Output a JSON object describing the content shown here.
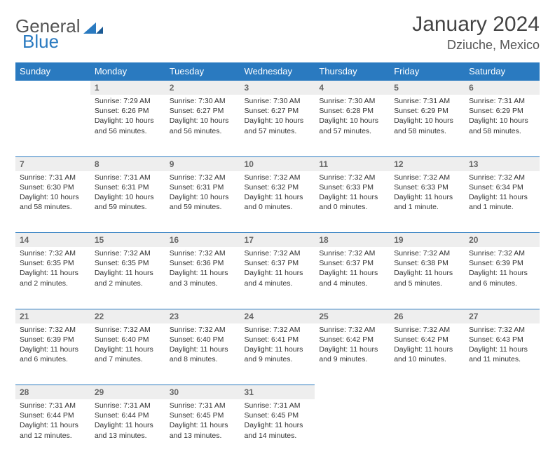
{
  "logo": {
    "word1": "General",
    "word2": "Blue"
  },
  "title": "January 2024",
  "location": "Dziuche, Mexico",
  "colors": {
    "header_bg": "#2a7ac0",
    "header_text": "#ffffff",
    "daynum_bg": "#eeeeee",
    "daynum_border": "#2a7ac0",
    "body_text": "#333333"
  },
  "weekdays": [
    "Sunday",
    "Monday",
    "Tuesday",
    "Wednesday",
    "Thursday",
    "Friday",
    "Saturday"
  ],
  "weeks": [
    [
      null,
      {
        "n": "1",
        "sr": "Sunrise: 7:29 AM",
        "ss": "Sunset: 6:26 PM",
        "dl": "Daylight: 10 hours and 56 minutes."
      },
      {
        "n": "2",
        "sr": "Sunrise: 7:30 AM",
        "ss": "Sunset: 6:27 PM",
        "dl": "Daylight: 10 hours and 56 minutes."
      },
      {
        "n": "3",
        "sr": "Sunrise: 7:30 AM",
        "ss": "Sunset: 6:27 PM",
        "dl": "Daylight: 10 hours and 57 minutes."
      },
      {
        "n": "4",
        "sr": "Sunrise: 7:30 AM",
        "ss": "Sunset: 6:28 PM",
        "dl": "Daylight: 10 hours and 57 minutes."
      },
      {
        "n": "5",
        "sr": "Sunrise: 7:31 AM",
        "ss": "Sunset: 6:29 PM",
        "dl": "Daylight: 10 hours and 58 minutes."
      },
      {
        "n": "6",
        "sr": "Sunrise: 7:31 AM",
        "ss": "Sunset: 6:29 PM",
        "dl": "Daylight: 10 hours and 58 minutes."
      }
    ],
    [
      {
        "n": "7",
        "sr": "Sunrise: 7:31 AM",
        "ss": "Sunset: 6:30 PM",
        "dl": "Daylight: 10 hours and 58 minutes."
      },
      {
        "n": "8",
        "sr": "Sunrise: 7:31 AM",
        "ss": "Sunset: 6:31 PM",
        "dl": "Daylight: 10 hours and 59 minutes."
      },
      {
        "n": "9",
        "sr": "Sunrise: 7:32 AM",
        "ss": "Sunset: 6:31 PM",
        "dl": "Daylight: 10 hours and 59 minutes."
      },
      {
        "n": "10",
        "sr": "Sunrise: 7:32 AM",
        "ss": "Sunset: 6:32 PM",
        "dl": "Daylight: 11 hours and 0 minutes."
      },
      {
        "n": "11",
        "sr": "Sunrise: 7:32 AM",
        "ss": "Sunset: 6:33 PM",
        "dl": "Daylight: 11 hours and 0 minutes."
      },
      {
        "n": "12",
        "sr": "Sunrise: 7:32 AM",
        "ss": "Sunset: 6:33 PM",
        "dl": "Daylight: 11 hours and 1 minute."
      },
      {
        "n": "13",
        "sr": "Sunrise: 7:32 AM",
        "ss": "Sunset: 6:34 PM",
        "dl": "Daylight: 11 hours and 1 minute."
      }
    ],
    [
      {
        "n": "14",
        "sr": "Sunrise: 7:32 AM",
        "ss": "Sunset: 6:35 PM",
        "dl": "Daylight: 11 hours and 2 minutes."
      },
      {
        "n": "15",
        "sr": "Sunrise: 7:32 AM",
        "ss": "Sunset: 6:35 PM",
        "dl": "Daylight: 11 hours and 2 minutes."
      },
      {
        "n": "16",
        "sr": "Sunrise: 7:32 AM",
        "ss": "Sunset: 6:36 PM",
        "dl": "Daylight: 11 hours and 3 minutes."
      },
      {
        "n": "17",
        "sr": "Sunrise: 7:32 AM",
        "ss": "Sunset: 6:37 PM",
        "dl": "Daylight: 11 hours and 4 minutes."
      },
      {
        "n": "18",
        "sr": "Sunrise: 7:32 AM",
        "ss": "Sunset: 6:37 PM",
        "dl": "Daylight: 11 hours and 4 minutes."
      },
      {
        "n": "19",
        "sr": "Sunrise: 7:32 AM",
        "ss": "Sunset: 6:38 PM",
        "dl": "Daylight: 11 hours and 5 minutes."
      },
      {
        "n": "20",
        "sr": "Sunrise: 7:32 AM",
        "ss": "Sunset: 6:39 PM",
        "dl": "Daylight: 11 hours and 6 minutes."
      }
    ],
    [
      {
        "n": "21",
        "sr": "Sunrise: 7:32 AM",
        "ss": "Sunset: 6:39 PM",
        "dl": "Daylight: 11 hours and 6 minutes."
      },
      {
        "n": "22",
        "sr": "Sunrise: 7:32 AM",
        "ss": "Sunset: 6:40 PM",
        "dl": "Daylight: 11 hours and 7 minutes."
      },
      {
        "n": "23",
        "sr": "Sunrise: 7:32 AM",
        "ss": "Sunset: 6:40 PM",
        "dl": "Daylight: 11 hours and 8 minutes."
      },
      {
        "n": "24",
        "sr": "Sunrise: 7:32 AM",
        "ss": "Sunset: 6:41 PM",
        "dl": "Daylight: 11 hours and 9 minutes."
      },
      {
        "n": "25",
        "sr": "Sunrise: 7:32 AM",
        "ss": "Sunset: 6:42 PM",
        "dl": "Daylight: 11 hours and 9 minutes."
      },
      {
        "n": "26",
        "sr": "Sunrise: 7:32 AM",
        "ss": "Sunset: 6:42 PM",
        "dl": "Daylight: 11 hours and 10 minutes."
      },
      {
        "n": "27",
        "sr": "Sunrise: 7:32 AM",
        "ss": "Sunset: 6:43 PM",
        "dl": "Daylight: 11 hours and 11 minutes."
      }
    ],
    [
      {
        "n": "28",
        "sr": "Sunrise: 7:31 AM",
        "ss": "Sunset: 6:44 PM",
        "dl": "Daylight: 11 hours and 12 minutes."
      },
      {
        "n": "29",
        "sr": "Sunrise: 7:31 AM",
        "ss": "Sunset: 6:44 PM",
        "dl": "Daylight: 11 hours and 13 minutes."
      },
      {
        "n": "30",
        "sr": "Sunrise: 7:31 AM",
        "ss": "Sunset: 6:45 PM",
        "dl": "Daylight: 11 hours and 13 minutes."
      },
      {
        "n": "31",
        "sr": "Sunrise: 7:31 AM",
        "ss": "Sunset: 6:45 PM",
        "dl": "Daylight: 11 hours and 14 minutes."
      },
      null,
      null,
      null
    ]
  ]
}
